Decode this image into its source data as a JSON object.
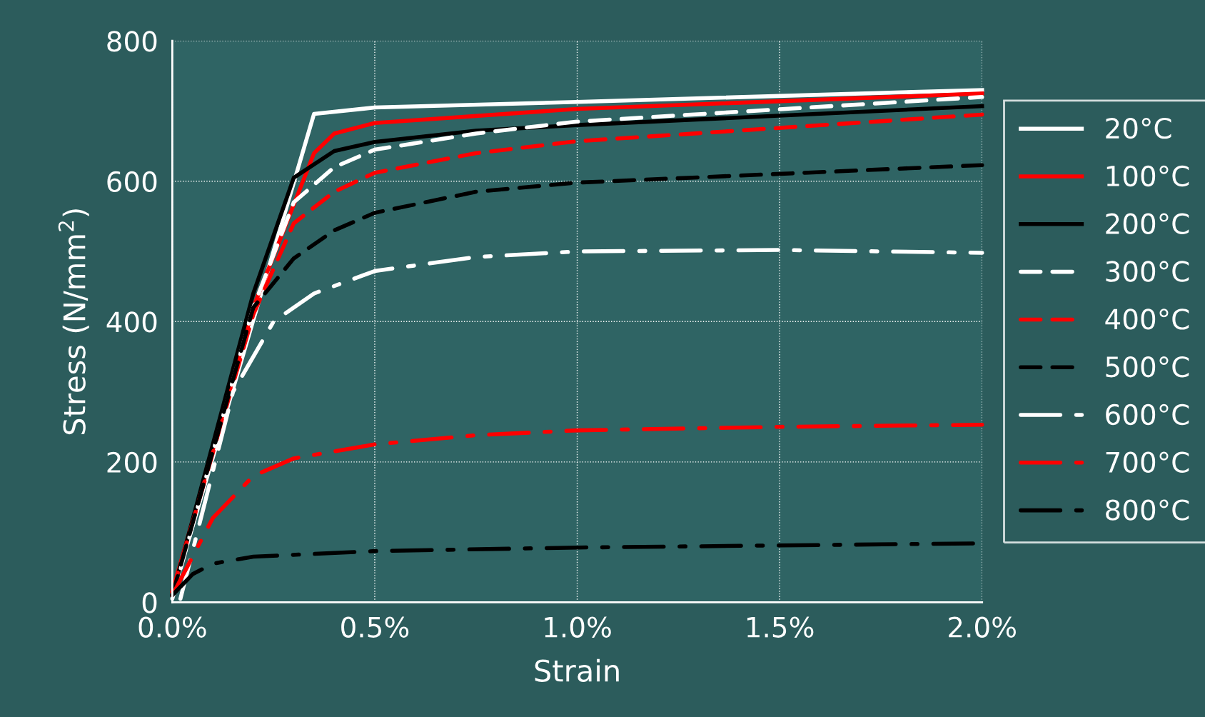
{
  "chart_data": {
    "type": "line",
    "xlabel": "Strain",
    "ylabel": "Stress (N/mm$^{2}$)",
    "xlim": [
      0,
      2
    ],
    "ylim": [
      0,
      800
    ],
    "xticks": [
      {
        "value": 0,
        "label": "0.0%"
      },
      {
        "value": 0.5,
        "label": "0.5%"
      },
      {
        "value": 1,
        "label": "1.0%"
      },
      {
        "value": 1.5,
        "label": "1.5%"
      },
      {
        "value": 2,
        "label": "2.0%"
      }
    ],
    "yticks": [
      0,
      200,
      400,
      600,
      800
    ],
    "grid": true,
    "legend": "right",
    "marker": "none",
    "series": [
      {
        "name": "20°C",
        "color": "#ffffff",
        "line_style": "solid",
        "x": [
          0,
          0.35,
          0.5,
          1.0,
          2.0
        ],
        "values": [
          10,
          696,
          705,
          713,
          730
        ]
      },
      {
        "name": "100°C",
        "color": "#ff0000",
        "line_style": "solid",
        "x": [
          0,
          0.2,
          0.35,
          0.4,
          0.5,
          1.0,
          2.0
        ],
        "values": [
          15,
          420,
          640,
          668,
          683,
          703,
          725
        ]
      },
      {
        "name": "200°C",
        "color": "#000000",
        "line_style": "solid",
        "x": [
          0,
          0.2,
          0.3,
          0.4,
          0.5,
          0.75,
          1.0,
          2.0
        ],
        "values": [
          10,
          440,
          605,
          643,
          656,
          672,
          680,
          707
        ]
      },
      {
        "name": "300°C",
        "color": "#ffffff",
        "line_style": "dashed",
        "x": [
          0,
          0.2,
          0.3,
          0.4,
          0.5,
          0.75,
          1.0,
          2.0
        ],
        "values": [
          5,
          420,
          570,
          620,
          645,
          668,
          685,
          720
        ]
      },
      {
        "name": "400°C",
        "color": "#ff0000",
        "line_style": "dashed",
        "x": [
          0,
          0.2,
          0.3,
          0.4,
          0.5,
          0.75,
          1.0,
          2.0
        ],
        "values": [
          15,
          410,
          540,
          585,
          612,
          640,
          657,
          695
        ]
      },
      {
        "name": "500°C",
        "color": "#000000",
        "line_style": "dashed",
        "x": [
          0,
          0.2,
          0.3,
          0.4,
          0.5,
          0.75,
          1.0,
          2.0
        ],
        "values": [
          10,
          420,
          490,
          530,
          555,
          585,
          598,
          623
        ]
      },
      {
        "name": "600°C",
        "color": "#ffffff",
        "line_style": "dashdot",
        "x": [
          0.02,
          0.15,
          0.25,
          0.35,
          0.5,
          0.75,
          1.0,
          1.5,
          2.0
        ],
        "values": [
          5,
          300,
          400,
          440,
          472,
          492,
          500,
          502,
          498
        ]
      },
      {
        "name": "700°C",
        "color": "#ff0000",
        "line_style": "dashdot",
        "x": [
          0,
          0.1,
          0.2,
          0.3,
          0.5,
          0.75,
          1.0,
          1.5,
          2.0
        ],
        "values": [
          10,
          120,
          180,
          205,
          225,
          238,
          245,
          250,
          253
        ]
      },
      {
        "name": "800°C",
        "color": "#000000",
        "line_style": "dashdot",
        "x": [
          0,
          0.05,
          0.1,
          0.2,
          0.5,
          1.0,
          2.0
        ],
        "values": [
          10,
          40,
          55,
          65,
          73,
          78,
          84
        ]
      }
    ]
  }
}
